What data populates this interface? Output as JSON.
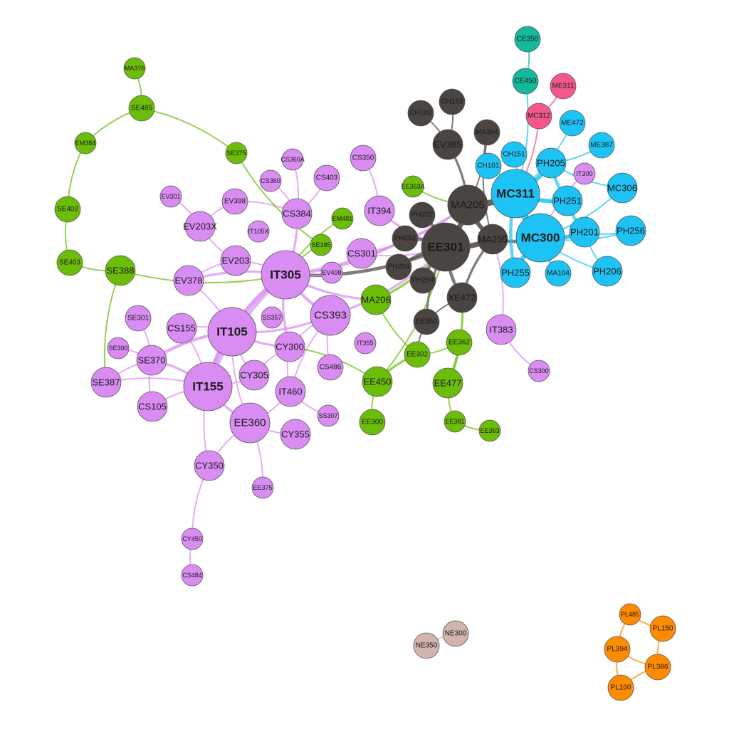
{
  "colors": {
    "purple": "#d98cf2",
    "dark": "#4a4540",
    "cyan": "#1ec3f5",
    "green": "#6cbd0a",
    "teal": "#14b89a",
    "pink": "#f2588a",
    "orange": "#ff8c00",
    "taupe": "#d1b4ac"
  },
  "nodes": [
    {
      "id": "IT305",
      "group": "purple",
      "size": "xl",
      "bold": true
    },
    {
      "id": "IT105",
      "group": "purple",
      "size": "xl",
      "bold": true
    },
    {
      "id": "IT155",
      "group": "purple",
      "size": "xl",
      "bold": true
    },
    {
      "id": "CS393",
      "group": "purple",
      "size": "l"
    },
    {
      "id": "EE360",
      "group": "purple",
      "size": "l"
    },
    {
      "id": "CS384",
      "group": "purple",
      "size": "m"
    },
    {
      "id": "SE370",
      "group": "purple",
      "size": "m"
    },
    {
      "id": "CY300",
      "group": "purple",
      "size": "m"
    },
    {
      "id": "EV378",
      "group": "purple",
      "size": "m"
    },
    {
      "id": "EV203X",
      "group": "purple",
      "size": "m"
    },
    {
      "id": "EV203",
      "group": "purple",
      "size": "m"
    },
    {
      "id": "CS155",
      "group": "purple",
      "size": "m"
    },
    {
      "id": "SE387",
      "group": "purple",
      "size": "m"
    },
    {
      "id": "CS105",
      "group": "purple",
      "size": "m"
    },
    {
      "id": "CY305",
      "group": "purple",
      "size": "m"
    },
    {
      "id": "IT460",
      "group": "purple",
      "size": "m"
    },
    {
      "id": "CY355",
      "group": "purple",
      "size": "m"
    },
    {
      "id": "CY350",
      "group": "purple",
      "size": "m"
    },
    {
      "id": "IT394",
      "group": "purple",
      "size": "m"
    },
    {
      "id": "CS301",
      "group": "purple",
      "size": "m"
    },
    {
      "id": "CS403",
      "group": "purple",
      "size": "s"
    },
    {
      "id": "EV398",
      "group": "purple",
      "size": "s"
    },
    {
      "id": "SE301",
      "group": "purple",
      "size": "s"
    },
    {
      "id": "CS486",
      "group": "purple",
      "size": "s"
    },
    {
      "id": "IT383",
      "group": "purple",
      "size": "m"
    },
    {
      "id": "CS350",
      "group": "purple",
      "size": "s"
    },
    {
      "id": "CS360A",
      "group": "purple",
      "size": "xs"
    },
    {
      "id": "CS360",
      "group": "purple",
      "size": "xs"
    },
    {
      "id": "EV301",
      "group": "purple",
      "size": "xs"
    },
    {
      "id": "IT105X",
      "group": "purple",
      "size": "xs"
    },
    {
      "id": "EV498",
      "group": "purple",
      "size": "xs"
    },
    {
      "id": "SS357",
      "group": "purple",
      "size": "xs"
    },
    {
      "id": "SE300",
      "group": "purple",
      "size": "xs"
    },
    {
      "id": "IT355",
      "group": "purple",
      "size": "xs"
    },
    {
      "id": "SS307",
      "group": "purple",
      "size": "xs"
    },
    {
      "id": "EE375",
      "group": "purple",
      "size": "xs"
    },
    {
      "id": "CY450",
      "group": "purple",
      "size": "xs"
    },
    {
      "id": "CS484",
      "group": "purple",
      "size": "xs"
    },
    {
      "id": "CS300",
      "group": "purple",
      "size": "xs"
    },
    {
      "id": "IT300",
      "group": "purple",
      "size": "xs"
    },
    {
      "id": "EE301",
      "group": "dark",
      "size": "xl",
      "bold": true
    },
    {
      "id": "MA205",
      "group": "dark",
      "size": "l"
    },
    {
      "id": "MA255",
      "group": "dark",
      "size": "m"
    },
    {
      "id": "XE472",
      "group": "dark",
      "size": "m"
    },
    {
      "id": "EV385",
      "group": "dark",
      "size": "m"
    },
    {
      "id": "PH202",
      "group": "dark",
      "size": "s"
    },
    {
      "id": "PH252",
      "group": "dark",
      "size": "s"
    },
    {
      "id": "PH204",
      "group": "dark",
      "size": "s"
    },
    {
      "id": "PH254",
      "group": "dark",
      "size": "s"
    },
    {
      "id": "EE350",
      "group": "dark",
      "size": "s"
    },
    {
      "id": "MA364",
      "group": "dark",
      "size": "s"
    },
    {
      "id": "CH102",
      "group": "dark",
      "size": "s"
    },
    {
      "id": "CH152",
      "group": "dark",
      "size": "s"
    },
    {
      "id": "MC311",
      "group": "cyan",
      "size": "xl",
      "bold": true
    },
    {
      "id": "MC300",
      "group": "cyan",
      "size": "xl",
      "bold": true
    },
    {
      "id": "PH205",
      "group": "cyan",
      "size": "m"
    },
    {
      "id": "PH251",
      "group": "cyan",
      "size": "m"
    },
    {
      "id": "PH201",
      "group": "cyan",
      "size": "m"
    },
    {
      "id": "PH255",
      "group": "cyan",
      "size": "m"
    },
    {
      "id": "MC306",
      "group": "cyan",
      "size": "m"
    },
    {
      "id": "PH256",
      "group": "cyan",
      "size": "m"
    },
    {
      "id": "PH206",
      "group": "cyan",
      "size": "m"
    },
    {
      "id": "MA104",
      "group": "cyan",
      "size": "s"
    },
    {
      "id": "CH151",
      "group": "cyan",
      "size": "s"
    },
    {
      "id": "CH101",
      "group": "cyan",
      "size": "s"
    },
    {
      "id": "ME472",
      "group": "cyan",
      "size": "s"
    },
    {
      "id": "ME387",
      "group": "cyan",
      "size": "s"
    },
    {
      "id": "MA206",
      "group": "green",
      "size": "m"
    },
    {
      "id": "EE450",
      "group": "green",
      "size": "m"
    },
    {
      "id": "EE477",
      "group": "green",
      "size": "m"
    },
    {
      "id": "EE302",
      "group": "green",
      "size": "s"
    },
    {
      "id": "EE362",
      "group": "green",
      "size": "s"
    },
    {
      "id": "EE300",
      "group": "green",
      "size": "s"
    },
    {
      "id": "EE381",
      "group": "green",
      "size": "xs"
    },
    {
      "id": "EE363",
      "group": "green",
      "size": "xs"
    },
    {
      "id": "EE363A",
      "group": "green",
      "size": "xs"
    },
    {
      "id": "EM481",
      "group": "green",
      "size": "xs"
    },
    {
      "id": "SE385",
      "group": "green",
      "size": "xs"
    },
    {
      "id": "SE375",
      "group": "green",
      "size": "xs"
    },
    {
      "id": "SE388",
      "group": "green",
      "size": "m"
    },
    {
      "id": "SE403",
      "group": "green",
      "size": "s"
    },
    {
      "id": "SE402",
      "group": "green",
      "size": "s"
    },
    {
      "id": "EM384",
      "group": "green",
      "size": "xs"
    },
    {
      "id": "SE485",
      "group": "green",
      "size": "s"
    },
    {
      "id": "MA376",
      "group": "green",
      "size": "xs"
    },
    {
      "id": "CE350",
      "group": "teal",
      "size": "s"
    },
    {
      "id": "CE450",
      "group": "teal",
      "size": "s"
    },
    {
      "id": "ME311",
      "group": "pink",
      "size": "s"
    },
    {
      "id": "MC312",
      "group": "pink",
      "size": "s"
    },
    {
      "id": "NE300",
      "group": "taupe",
      "size": "s"
    },
    {
      "id": "NE350",
      "group": "taupe",
      "size": "s"
    },
    {
      "id": "PL485",
      "group": "orange",
      "size": "xs"
    },
    {
      "id": "PL150",
      "group": "orange",
      "size": "s"
    },
    {
      "id": "PL394",
      "group": "orange",
      "size": "s"
    },
    {
      "id": "PL386",
      "group": "orange",
      "size": "s"
    },
    {
      "id": "PL100",
      "group": "orange",
      "size": "s"
    }
  ],
  "edges": [
    [
      "IT305",
      "IT105",
      "purple",
      4
    ],
    [
      "IT305",
      "CS393",
      "purple",
      3
    ],
    [
      "IT305",
      "EE301",
      "dark",
      3
    ],
    [
      "IT305",
      "EV378",
      "purple",
      2
    ],
    [
      "IT305",
      "CS384",
      "purple",
      2
    ],
    [
      "IT305",
      "CY300",
      "purple",
      2
    ],
    [
      "IT305",
      "EV203",
      "purple",
      1
    ],
    [
      "IT305",
      "IT155",
      "purple",
      3
    ],
    [
      "IT305",
      "MA206",
      "purple",
      2
    ],
    [
      "IT305",
      "PH252",
      "purple",
      2
    ],
    [
      "IT305",
      "EV498",
      "purple",
      1
    ],
    [
      "IT305",
      "MA205",
      "purple",
      2
    ],
    [
      "IT105",
      "IT155",
      "purple",
      4
    ],
    [
      "IT105",
      "SE370",
      "purple",
      3
    ],
    [
      "IT105",
      "CY300",
      "purple",
      2
    ],
    [
      "IT105",
      "CS393",
      "purple",
      2
    ],
    [
      "IT105",
      "CS155",
      "purple",
      1
    ],
    [
      "IT105",
      "EE360",
      "purple",
      1
    ],
    [
      "IT105",
      "CY305",
      "purple",
      1
    ],
    [
      "IT105",
      "EV378",
      "purple",
      1
    ],
    [
      "IT155",
      "SE370",
      "purple",
      2
    ],
    [
      "IT155",
      "CS105",
      "purple",
      1
    ],
    [
      "IT155",
      "EE360",
      "purple",
      2
    ],
    [
      "IT155",
      "CY305",
      "purple",
      1
    ],
    [
      "IT155",
      "CS155",
      "purple",
      1
    ],
    [
      "IT155",
      "SE387",
      "purple",
      1
    ],
    [
      "IT155",
      "CY350",
      "purple",
      1
    ],
    [
      "SE370",
      "SE387",
      "purple",
      1
    ],
    [
      "SE370",
      "CS105",
      "purple",
      1
    ],
    [
      "SE370",
      "SE300",
      "purple",
      1
    ],
    [
      "SE370",
      "SE301",
      "purple",
      1
    ],
    [
      "CS393",
      "CY300",
      "purple",
      1
    ],
    [
      "CS393",
      "EE301",
      "purple",
      2
    ],
    [
      "CS393",
      "IT460",
      "purple",
      1
    ],
    [
      "CS393",
      "CS486",
      "purple",
      1
    ],
    [
      "CY300",
      "IT460",
      "purple",
      1
    ],
    [
      "CY300",
      "CY305",
      "purple",
      1
    ],
    [
      "EE360",
      "IT460",
      "purple",
      1
    ],
    [
      "EE360",
      "CY355",
      "purple",
      1
    ],
    [
      "EE360",
      "CY350",
      "purple",
      1
    ],
    [
      "CY350",
      "CY450",
      "purple",
      1
    ],
    [
      "CY450",
      "CS484",
      "purple",
      1
    ],
    [
      "IT460",
      "SS307",
      "purple",
      1
    ],
    [
      "CS384",
      "CS403",
      "purple",
      1
    ],
    [
      "CS384",
      "CS360A",
      "purple",
      1
    ],
    [
      "CS384",
      "CS360",
      "purple",
      1
    ],
    [
      "CS384",
      "EV398",
      "purple",
      1
    ],
    [
      "IT394",
      "EE301",
      "purple",
      2
    ],
    [
      "IT394",
      "CS350",
      "purple",
      1
    ],
    [
      "CS301",
      "EE301",
      "purple",
      1
    ],
    [
      "CS301",
      "MA205",
      "purple",
      1
    ],
    [
      "EV203X",
      "EV203",
      "purple",
      1
    ],
    [
      "EV203X",
      "EV301",
      "purple",
      1
    ],
    [
      "EV203",
      "EV378",
      "purple",
      1
    ],
    [
      "EV398",
      "EV203X",
      "purple",
      1
    ],
    [
      "IT383",
      "MA255",
      "purple",
      1
    ],
    [
      "IT383",
      "CS300",
      "purple",
      1
    ],
    [
      "EE375",
      "EE360",
      "purple",
      1
    ],
    [
      "IT300",
      "MC300",
      "purple",
      1
    ],
    [
      "EE301",
      "MA205",
      "dark",
      5
    ],
    [
      "EE301",
      "MA255",
      "dark",
      5
    ],
    [
      "EE301",
      "PH202",
      "dark",
      3
    ],
    [
      "EE301",
      "PH252",
      "dark",
      3
    ],
    [
      "EE301",
      "PH204",
      "dark",
      3
    ],
    [
      "EE301",
      "PH254",
      "dark",
      3
    ],
    [
      "EE301",
      "XE472",
      "dark",
      3
    ],
    [
      "EE301",
      "EE350",
      "dark",
      2
    ],
    [
      "MA205",
      "MA255",
      "dark",
      4
    ],
    [
      "MA205",
      "EV385",
      "dark",
      2
    ],
    [
      "MA205",
      "MA364",
      "dark",
      1
    ],
    [
      "MA205",
      "MC311",
      "dark",
      6
    ],
    [
      "MA255",
      "MC300",
      "dark",
      3
    ],
    [
      "MA255",
      "XE472",
      "dark",
      2
    ],
    [
      "EV385",
      "CH102",
      "dark",
      1
    ],
    [
      "EV385",
      "CH152",
      "dark",
      1
    ],
    [
      "MA364",
      "MA255",
      "dark",
      1
    ],
    [
      "XE472",
      "EE350",
      "dark",
      1
    ],
    [
      "EE350",
      "EE302",
      "dark",
      1
    ],
    [
      "MC311",
      "MC300",
      "cyan",
      7
    ],
    [
      "MC311",
      "PH205",
      "cyan",
      4
    ],
    [
      "MC311",
      "PH251",
      "cyan",
      4
    ],
    [
      "MC311",
      "PH255",
      "cyan",
      3
    ],
    [
      "MC311",
      "CH151",
      "cyan",
      1
    ],
    [
      "MC311",
      "CH101",
      "cyan",
      1
    ],
    [
      "MC300",
      "PH201",
      "cyan",
      4
    ],
    [
      "MC300",
      "PH255",
      "cyan",
      4
    ],
    [
      "MC300",
      "MA104",
      "cyan",
      2
    ],
    [
      "MC300",
      "PH206",
      "cyan",
      1
    ],
    [
      "MC300",
      "PH256",
      "cyan",
      1
    ],
    [
      "MC300",
      "MC306",
      "cyan",
      1
    ],
    [
      "PH205",
      "PH251",
      "cyan",
      3
    ],
    [
      "PH251",
      "PH201",
      "cyan",
      3
    ],
    [
      "PH205",
      "MC306",
      "cyan",
      1
    ],
    [
      "PH205",
      "ME387",
      "cyan",
      1
    ],
    [
      "PH201",
      "PH256",
      "cyan",
      1
    ],
    [
      "PH201",
      "PH206",
      "cyan",
      1
    ],
    [
      "MC311",
      "ME472",
      "cyan",
      1
    ],
    [
      "MC311",
      "CE450",
      "cyan",
      1
    ],
    [
      "MC311",
      "MC312",
      "pink",
      1
    ],
    [
      "MC312",
      "ME311",
      "pink",
      1
    ],
    [
      "CE450",
      "CE350",
      "teal",
      1
    ],
    [
      "MA206",
      "EE301",
      "green",
      2
    ],
    [
      "MA206",
      "EE302",
      "green",
      1
    ],
    [
      "EE302",
      "EE450",
      "green",
      2
    ],
    [
      "EE302",
      "EE362",
      "green",
      1
    ],
    [
      "EE450",
      "EE300",
      "green",
      1
    ],
    [
      "EE450",
      "EE301",
      "green",
      1
    ],
    [
      "EE477",
      "EE362",
      "green",
      1
    ],
    [
      "EE477",
      "EE381",
      "green",
      1
    ],
    [
      "EE477",
      "XE472",
      "green",
      2
    ],
    [
      "EE381",
      "EE363",
      "green",
      1
    ],
    [
      "EE363A",
      "MA205",
      "green",
      1
    ],
    [
      "EM481",
      "IT305",
      "green",
      1
    ],
    [
      "SE385",
      "IT305",
      "green",
      1
    ],
    [
      "SE375",
      "SE485",
      "green",
      1
    ],
    [
      "SE485",
      "MA376",
      "green",
      1
    ],
    [
      "SE485",
      "EM384",
      "green",
      1
    ],
    [
      "EM384",
      "SE402",
      "green",
      1
    ],
    [
      "SE402",
      "SE403",
      "green",
      1
    ],
    [
      "SE403",
      "SE388",
      "green",
      1
    ],
    [
      "SE388",
      "IT305",
      "green",
      1
    ],
    [
      "SE388",
      "SE387",
      "green",
      1
    ],
    [
      "SE375",
      "SE385",
      "green",
      1
    ],
    [
      "EE450",
      "CY300",
      "green",
      1
    ],
    [
      "NE300",
      "NE350",
      "taupe",
      1
    ],
    [
      "PL485",
      "PL150",
      "orange",
      1
    ],
    [
      "PL150",
      "PL386",
      "orange",
      1
    ],
    [
      "PL394",
      "PL386",
      "orange",
      1
    ],
    [
      "PL394",
      "PL100",
      "orange",
      1
    ],
    [
      "PL386",
      "PL100",
      "orange",
      1
    ],
    [
      "PL485",
      "PL394",
      "orange",
      1
    ]
  ]
}
